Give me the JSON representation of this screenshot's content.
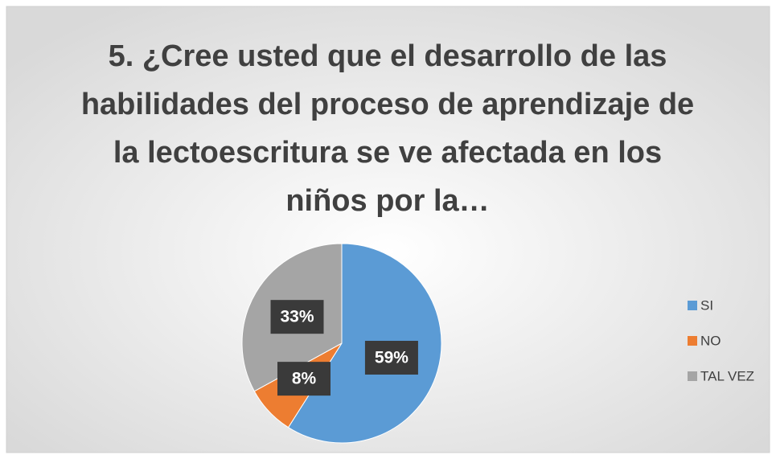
{
  "chart_data": {
    "type": "pie",
    "title": "5. ¿Cree usted que el desarrollo de las habilidades del proceso de aprendizaje de la lectoescritura se ve afectada en los niños por la…",
    "categories": [
      "SI",
      "NO",
      "TAL VEZ"
    ],
    "values": [
      59,
      8,
      33
    ],
    "value_labels": [
      "59%",
      "8%",
      "33%"
    ],
    "colors": [
      "#5b9bd5",
      "#ed7d31",
      "#a5a5a5"
    ],
    "legend": "right"
  }
}
